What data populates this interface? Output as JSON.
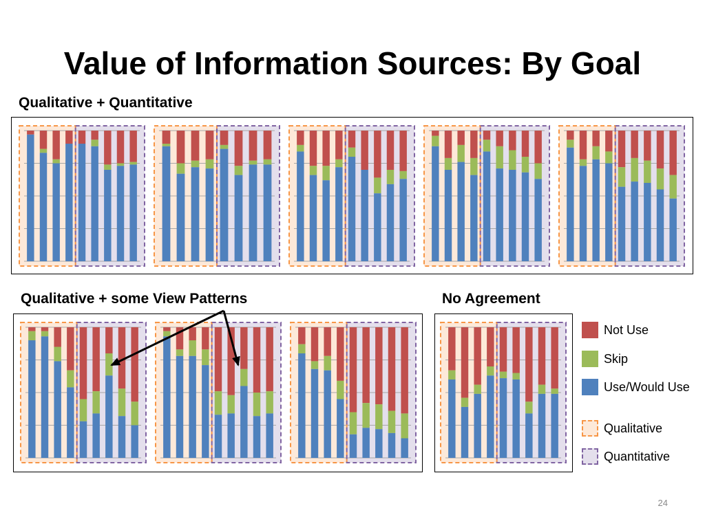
{
  "title": "Value of Information Sources: By Goal",
  "page_number": "24",
  "colors": {
    "not_use": "#c0504d",
    "skip": "#9bbb59",
    "use": "#4f81bd",
    "qualitative_fill": "#fde9d9",
    "qualitative_border": "#f79646",
    "quantitative_fill": "#e4dfec",
    "quantitative_border": "#8064a2",
    "gridline": "#a6a6a6"
  },
  "groups": {
    "top": {
      "label": "Qualitative + Quantitative"
    },
    "middle": {
      "label": "Qualitative + some View Patterns"
    },
    "right": {
      "label": "No Agreement"
    }
  },
  "legend": {
    "not_use": "Not Use",
    "skip": "Skip",
    "use": "Use/Would Use",
    "qualitative": "Qualitative",
    "quantitative": "Quantitative"
  },
  "chart_data": [
    {
      "type": "bar",
      "group": "top",
      "series_order": [
        "use",
        "skip",
        "not_use"
      ],
      "ylim": [
        0,
        100
      ],
      "qualitative": {
        "use": [
          97,
          83,
          75,
          90
        ],
        "skip": [
          0,
          3,
          3,
          0
        ]
      },
      "quantitative": {
        "use": [
          90,
          88,
          70,
          73,
          74
        ],
        "skip": [
          0,
          5,
          4,
          2,
          2
        ]
      }
    },
    {
      "type": "bar",
      "group": "top",
      "series_order": [
        "use",
        "skip",
        "not_use"
      ],
      "ylim": [
        0,
        100
      ],
      "qualitative": {
        "use": [
          88,
          67,
          72,
          71
        ],
        "skip": [
          2,
          8,
          5,
          7
        ]
      },
      "quantitative": {
        "use": [
          86,
          66,
          74,
          74
        ],
        "skip": [
          3,
          7,
          3,
          4
        ]
      }
    },
    {
      "type": "bar",
      "group": "top",
      "series_order": [
        "use",
        "skip",
        "not_use"
      ],
      "ylim": [
        0,
        100
      ],
      "qualitative": {
        "use": [
          84,
          66,
          62,
          72
        ],
        "skip": [
          5,
          7,
          11,
          6
        ]
      },
      "quantitative": {
        "use": [
          80,
          70,
          52,
          59,
          63
        ],
        "skip": [
          7,
          0,
          12,
          11,
          6
        ]
      }
    },
    {
      "type": "bar",
      "group": "top",
      "series_order": [
        "use",
        "skip",
        "not_use"
      ],
      "ylim": [
        0,
        100
      ],
      "qualitative": {
        "use": [
          88,
          70,
          76,
          66
        ],
        "skip": [
          8,
          9,
          13,
          13
        ]
      },
      "quantitative": {
        "use": [
          84,
          71,
          70,
          68,
          63
        ],
        "skip": [
          9,
          17,
          15,
          12,
          12
        ]
      }
    },
    {
      "type": "bar",
      "group": "top",
      "series_order": [
        "use",
        "skip",
        "not_use"
      ],
      "ylim": [
        0,
        100
      ],
      "qualitative": {
        "use": [
          87,
          73,
          78,
          75
        ],
        "skip": [
          6,
          5,
          10,
          9
        ]
      },
      "quantitative": {
        "use": [
          57,
          61,
          60,
          55,
          48
        ],
        "skip": [
          15,
          18,
          17,
          16,
          18
        ]
      }
    },
    {
      "type": "bar",
      "group": "middle",
      "series_order": [
        "use",
        "skip",
        "not_use"
      ],
      "ylim": [
        0,
        100
      ],
      "qualitative": {
        "use": [
          90,
          93,
          74,
          54
        ],
        "skip": [
          7,
          4,
          11,
          13
        ]
      },
      "quantitative": {
        "use": [
          28,
          34,
          63,
          32,
          25
        ],
        "skip": [
          17,
          17,
          17,
          21,
          18
        ]
      }
    },
    {
      "type": "bar",
      "group": "middle",
      "series_order": [
        "use",
        "skip",
        "not_use"
      ],
      "ylim": [
        0,
        100
      ],
      "qualitative": {
        "use": [
          93,
          78,
          78,
          71
        ],
        "skip": [
          4,
          5,
          12,
          12
        ]
      },
      "quantitative": {
        "use": [
          33,
          34,
          55,
          32,
          34
        ],
        "skip": [
          18,
          14,
          13,
          18,
          17
        ]
      }
    },
    {
      "type": "bar",
      "group": "middle",
      "series_order": [
        "use",
        "skip",
        "not_use"
      ],
      "ylim": [
        0,
        100
      ],
      "qualitative": {
        "use": [
          80,
          68,
          67,
          45
        ],
        "skip": [
          7,
          6,
          11,
          14
        ]
      },
      "quantitative": {
        "use": [
          18,
          23,
          22,
          19,
          15
        ],
        "skip": [
          17,
          19,
          19,
          17,
          19
        ]
      }
    },
    {
      "type": "bar",
      "group": "right",
      "series_order": [
        "use",
        "skip",
        "not_use"
      ],
      "ylim": [
        0,
        100
      ],
      "qualitative": {
        "use": [
          60,
          39,
          49,
          63
        ],
        "skip": [
          7,
          7,
          7,
          7
        ]
      },
      "quantitative": {
        "use": [
          61,
          60,
          34,
          49,
          49
        ],
        "skip": [
          5,
          5,
          9,
          7,
          4
        ]
      }
    }
  ]
}
